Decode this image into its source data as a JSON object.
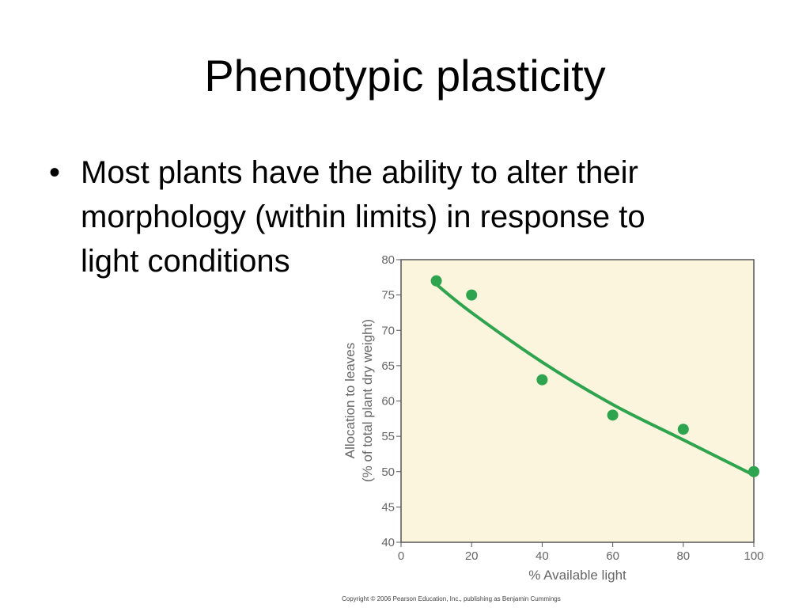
{
  "slide": {
    "title": "Phenotypic plasticity",
    "bullet_char": "•",
    "bullet_lines": [
      "Most plants have the ability to alter their",
      "morphology (within limits) in response to",
      "light conditions"
    ],
    "copyright": "Copyright © 2006 Pearson Education, Inc., publishing as Benjamin Cummings"
  },
  "colors": {
    "plot_background": "#faf5dc",
    "series": "#2ea44f",
    "axis": "#555555"
  },
  "chart_data": {
    "type": "scatter",
    "xlabel": "% Available light",
    "ylabel_lines": [
      "Allocation to leaves",
      "(% of total plant dry weight)"
    ],
    "xlim": [
      0,
      100
    ],
    "ylim": [
      40,
      80
    ],
    "x_ticks": [
      0,
      20,
      40,
      60,
      80,
      100
    ],
    "y_ticks": [
      40,
      45,
      50,
      55,
      60,
      65,
      70,
      75,
      80
    ],
    "grid": false,
    "legend": "none",
    "points": [
      {
        "x": 10,
        "y": 77
      },
      {
        "x": 20,
        "y": 75
      },
      {
        "x": 40,
        "y": 63
      },
      {
        "x": 60,
        "y": 58
      },
      {
        "x": 80,
        "y": 56
      },
      {
        "x": 100,
        "y": 50
      }
    ],
    "trend_line": {
      "x": [
        10,
        20,
        40,
        60,
        80,
        100
      ],
      "y": [
        76.5,
        72.5,
        65.5,
        59.5,
        54.5,
        49.5
      ]
    }
  }
}
